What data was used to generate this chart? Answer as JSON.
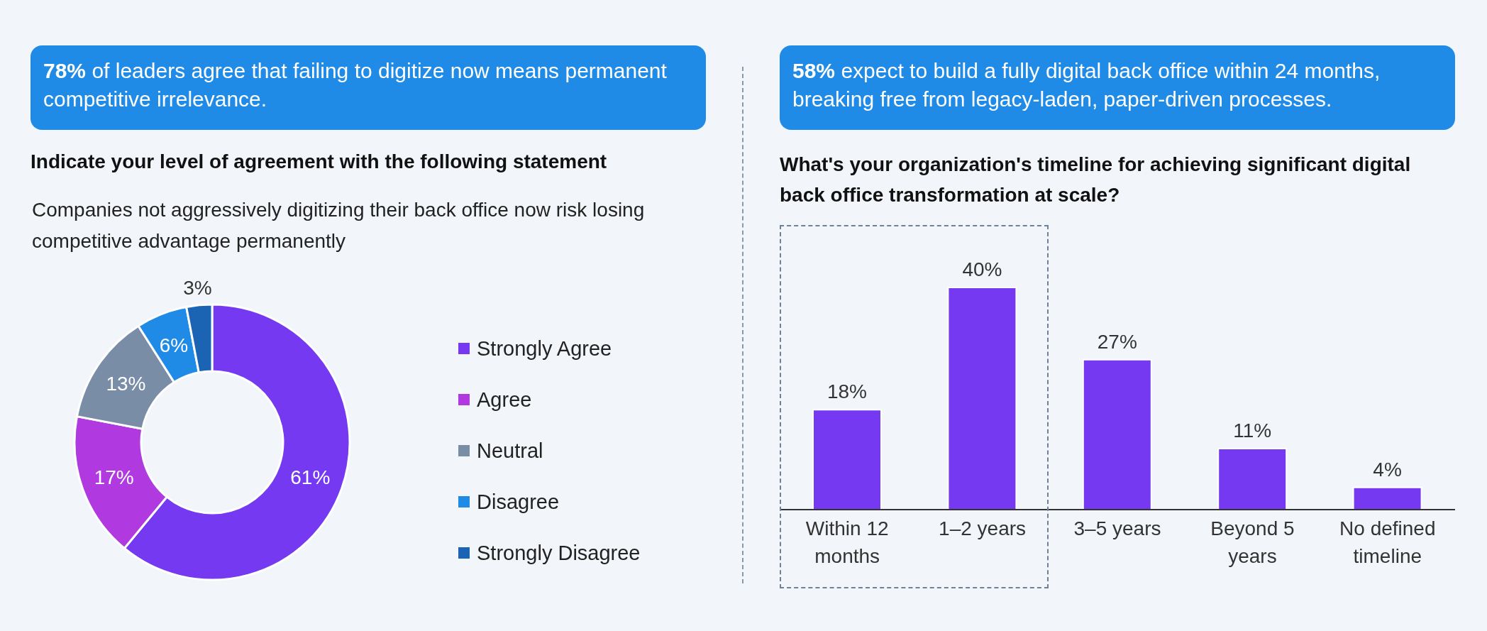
{
  "chart_data": [
    {
      "type": "donut",
      "annotations": [
        "78%",
        "of leaders agree that failing to digitize now means permanent competitive irrelevance."
      ],
      "title": "Indicate your level of agreement with the following statement",
      "subtitle": "Companies not aggressively digitizing their back office now risk losing competitive advantage permanently",
      "categories": [
        "Strongly Agree",
        "Agree",
        "Neutral",
        "Disagree",
        "Strongly Disagree"
      ],
      "values": [
        61,
        17,
        13,
        6,
        3
      ],
      "value_labels": [
        "61%",
        "17%",
        "13%",
        "6%",
        "3%"
      ],
      "colors": [
        "#7439f0",
        "#b03ae0",
        "#7a8da6",
        "#1f8be6",
        "#1b63b3"
      ],
      "legend": "right"
    },
    {
      "type": "bar",
      "annotations": [
        "58%",
        "expect to build a fully digital back office within 24 months, breaking free from legacy-laden, paper-driven processes."
      ],
      "title": "What's your organization's timeline for achieving significant digital back office transformation at scale?",
      "categories": [
        "Within 12 months",
        "1–2 years",
        "3–5 years",
        "Beyond 5 years",
        "No defined timeline"
      ],
      "values": [
        18,
        40,
        27,
        11,
        4
      ],
      "value_labels": [
        "18%",
        "40%",
        "27%",
        "11%",
        "4%"
      ],
      "color": "#7439f0",
      "tick_labels": "x"
    }
  ]
}
